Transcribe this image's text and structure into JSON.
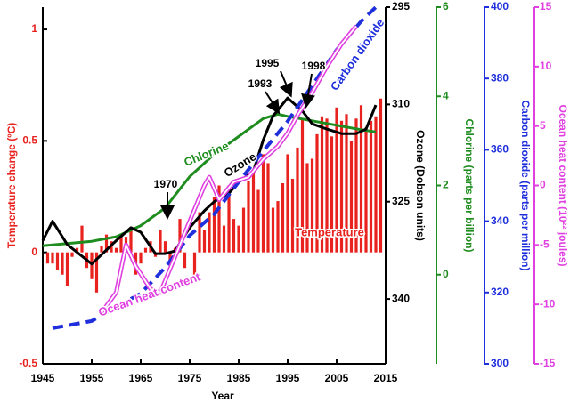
{
  "chart_data": {
    "type": "combo",
    "xlabel": "Year",
    "xlim": [
      1945,
      2015
    ],
    "xticks": [
      1945,
      1955,
      1965,
      1975,
      1985,
      1995,
      2005,
      2015
    ],
    "ylabel": "Temperature change (ºC)",
    "ylim": [
      -0.5,
      1.1
    ],
    "yticks": [
      -0.5,
      0,
      0.5,
      1
    ],
    "ycolor": "#e8231f",
    "axes": [
      {
        "label": "Ozone (Dobson units)",
        "lim": [
          350,
          295
        ],
        "ticks": [
          295,
          310,
          325,
          340
        ],
        "color": "#000000"
      },
      {
        "label": "Chlorine (parts per billion)",
        "lim": [
          -2,
          6
        ],
        "ticks": [
          0,
          2,
          4,
          6
        ],
        "color": "#1e8c1e"
      },
      {
        "label": "Carbon dioxide (parts per million)",
        "lim": [
          300,
          400
        ],
        "ticks": [
          300,
          320,
          340,
          360,
          380,
          400
        ],
        "color": "#1f2fdc"
      },
      {
        "label": "Ocean heat content (10²² joules)",
        "lim": [
          -15,
          15
        ],
        "ticks": [
          -15,
          -10,
          -5,
          0,
          5,
          10,
          15
        ],
        "color": "#e040e0"
      }
    ],
    "series": [
      {
        "name": "Temperature",
        "type": "bar",
        "color": "#e8231f",
        "x": [
          1945,
          1946,
          1947,
          1948,
          1949,
          1950,
          1951,
          1952,
          1953,
          1954,
          1955,
          1956,
          1957,
          1958,
          1959,
          1960,
          1961,
          1962,
          1963,
          1964,
          1965,
          1966,
          1967,
          1968,
          1969,
          1970,
          1971,
          1972,
          1973,
          1974,
          1975,
          1976,
          1977,
          1978,
          1979,
          1980,
          1981,
          1982,
          1983,
          1984,
          1985,
          1986,
          1987,
          1988,
          1989,
          1990,
          1991,
          1992,
          1993,
          1994,
          1995,
          1996,
          1997,
          1998,
          1999,
          2000,
          2001,
          2002,
          2003,
          2004,
          2005,
          2006,
          2007,
          2008,
          2009,
          2010,
          2011,
          2012,
          2013,
          2014
        ],
        "values": [
          0.0,
          -0.05,
          -0.05,
          -0.08,
          -0.1,
          -0.15,
          -0.02,
          0.02,
          0.12,
          -0.07,
          -0.12,
          -0.18,
          0.03,
          0.08,
          0.05,
          0.02,
          0.08,
          0.07,
          0.1,
          -0.1,
          -0.05,
          0.02,
          0.05,
          -0.02,
          0.1,
          0.05,
          -0.05,
          0.02,
          0.15,
          -0.07,
          0.0,
          -0.1,
          0.18,
          0.1,
          0.18,
          0.25,
          0.3,
          0.12,
          0.3,
          0.15,
          0.12,
          0.2,
          0.32,
          0.37,
          0.28,
          0.44,
          0.4,
          0.2,
          0.23,
          0.31,
          0.44,
          0.33,
          0.47,
          0.6,
          0.4,
          0.42,
          0.53,
          0.61,
          0.6,
          0.52,
          0.65,
          0.59,
          0.62,
          0.5,
          0.6,
          0.66,
          0.56,
          0.59,
          0.61,
          0.69
        ]
      },
      {
        "name": "Chlorine",
        "type": "line",
        "style": "solid",
        "axis": 1,
        "color": "#1e8c1e",
        "x": [
          1945,
          1950,
          1955,
          1960,
          1965,
          1970,
          1975,
          1980,
          1985,
          1990,
          1993,
          1995,
          2000,
          2005,
          2010,
          2013
        ],
        "values": [
          0.65,
          0.7,
          0.75,
          0.85,
          1.1,
          1.5,
          2.2,
          2.7,
          3.1,
          3.5,
          3.6,
          3.55,
          3.45,
          3.35,
          3.25,
          3.2
        ]
      },
      {
        "name": "Ozone",
        "type": "line",
        "style": "solid",
        "axis": 0,
        "color": "#000000",
        "x": [
          1945,
          1947,
          1950,
          1955,
          1960,
          1963,
          1965,
          1968,
          1970,
          1972,
          1975,
          1978,
          1980,
          1983,
          1985,
          1988,
          1990,
          1992,
          1995,
          1998,
          2000,
          2003,
          2006,
          2009,
          2011,
          2013
        ],
        "values": [
          331,
          328,
          331.6,
          334.6,
          331,
          329,
          329.7,
          333,
          333,
          332.6,
          329,
          326.4,
          325,
          323.7,
          322,
          320.3,
          315.5,
          311.8,
          309,
          311,
          313,
          313.8,
          314.5,
          314.5,
          313.8,
          310.1
        ]
      },
      {
        "name": "Carbon dioxide",
        "type": "line",
        "style": "dashed",
        "axis": 2,
        "color": "#1f2fdc",
        "x": [
          1947,
          1955,
          1960,
          1965,
          1970,
          1975,
          1980,
          1985,
          1990,
          1995,
          2000,
          2005,
          2010,
          2013
        ],
        "values": [
          310,
          312,
          316,
          319.7,
          327,
          336,
          342,
          351,
          359.6,
          368,
          378,
          388,
          396,
          400
        ]
      },
      {
        "name": "Ocean heat content",
        "type": "line",
        "style": "double",
        "axis": 3,
        "color": "#e040e0",
        "x": [
          1957,
          1960,
          1962,
          1964,
          1967,
          1969,
          1972,
          1975,
          1978,
          1979,
          1981,
          1984,
          1987,
          1990,
          1993,
          1995,
          1997,
          2000,
          2003,
          2006,
          2009
        ],
        "values": [
          -10.7,
          -9,
          -5,
          -6.8,
          -8.7,
          -9,
          -6,
          -3,
          0,
          0.7,
          -1.2,
          0.3,
          0.7,
          2.2,
          3.3,
          4.4,
          5.9,
          7.8,
          10,
          11.9,
          13.4
        ]
      }
    ],
    "annotations": [
      "1970",
      "1993",
      "1995",
      "1998"
    ]
  }
}
